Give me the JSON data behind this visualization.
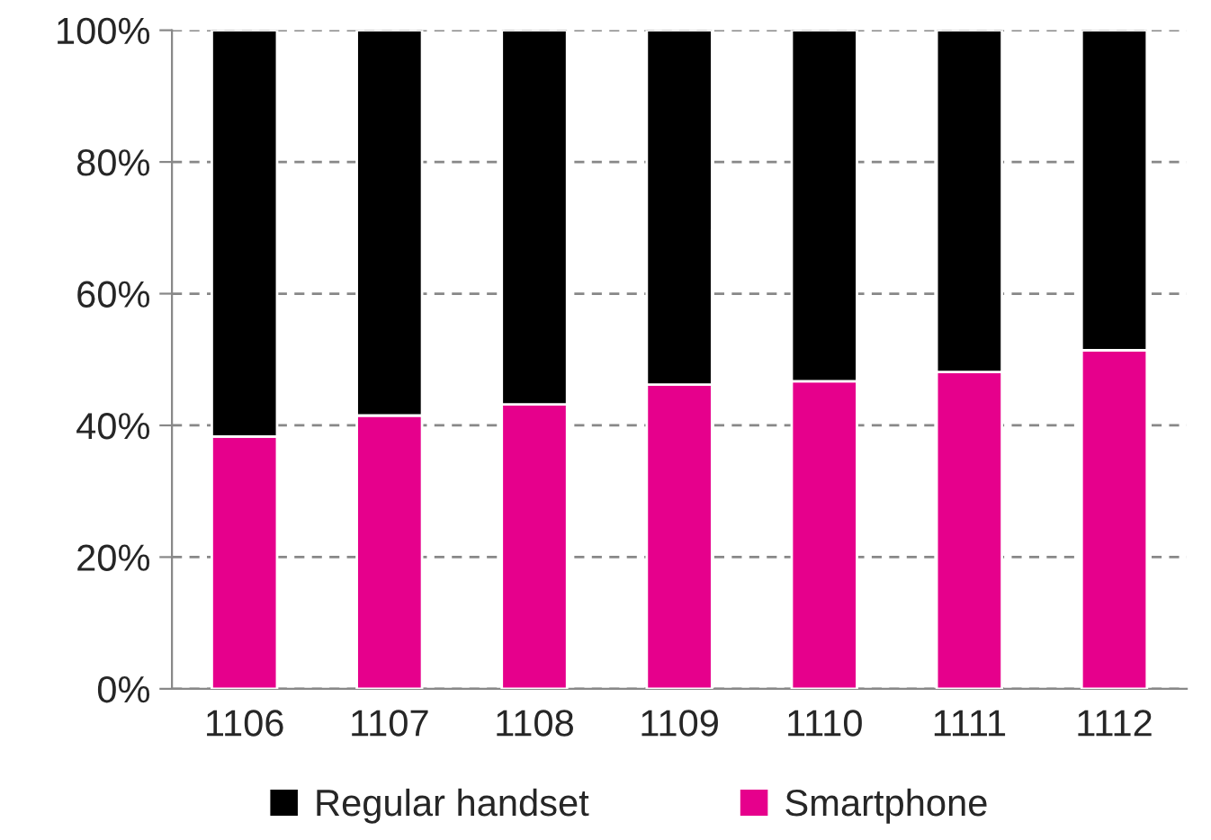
{
  "chart_data": {
    "type": "bar",
    "stacked": true,
    "categories": [
      "1106",
      "1107",
      "1108",
      "1109",
      "1110",
      "1111",
      "1112"
    ],
    "series": [
      {
        "name": "Smartphone",
        "color": "#e6008c",
        "values": [
          38.3,
          41.5,
          43.2,
          46.2,
          46.7,
          48.1,
          51.4
        ]
      },
      {
        "name": "Regular handset",
        "color": "#000000",
        "values": [
          61.7,
          58.5,
          56.8,
          53.8,
          53.3,
          51.9,
          48.6
        ]
      }
    ],
    "ylim": [
      0,
      100
    ],
    "yticks": [
      {
        "value": 0,
        "label": "0%"
      },
      {
        "value": 20,
        "label": "20%"
      },
      {
        "value": 40,
        "label": "40%"
      },
      {
        "value": 60,
        "label": "60%"
      },
      {
        "value": 80,
        "label": "80%"
      },
      {
        "value": 100,
        "label": "100%"
      }
    ],
    "grid": "y",
    "legend": "bottom"
  }
}
